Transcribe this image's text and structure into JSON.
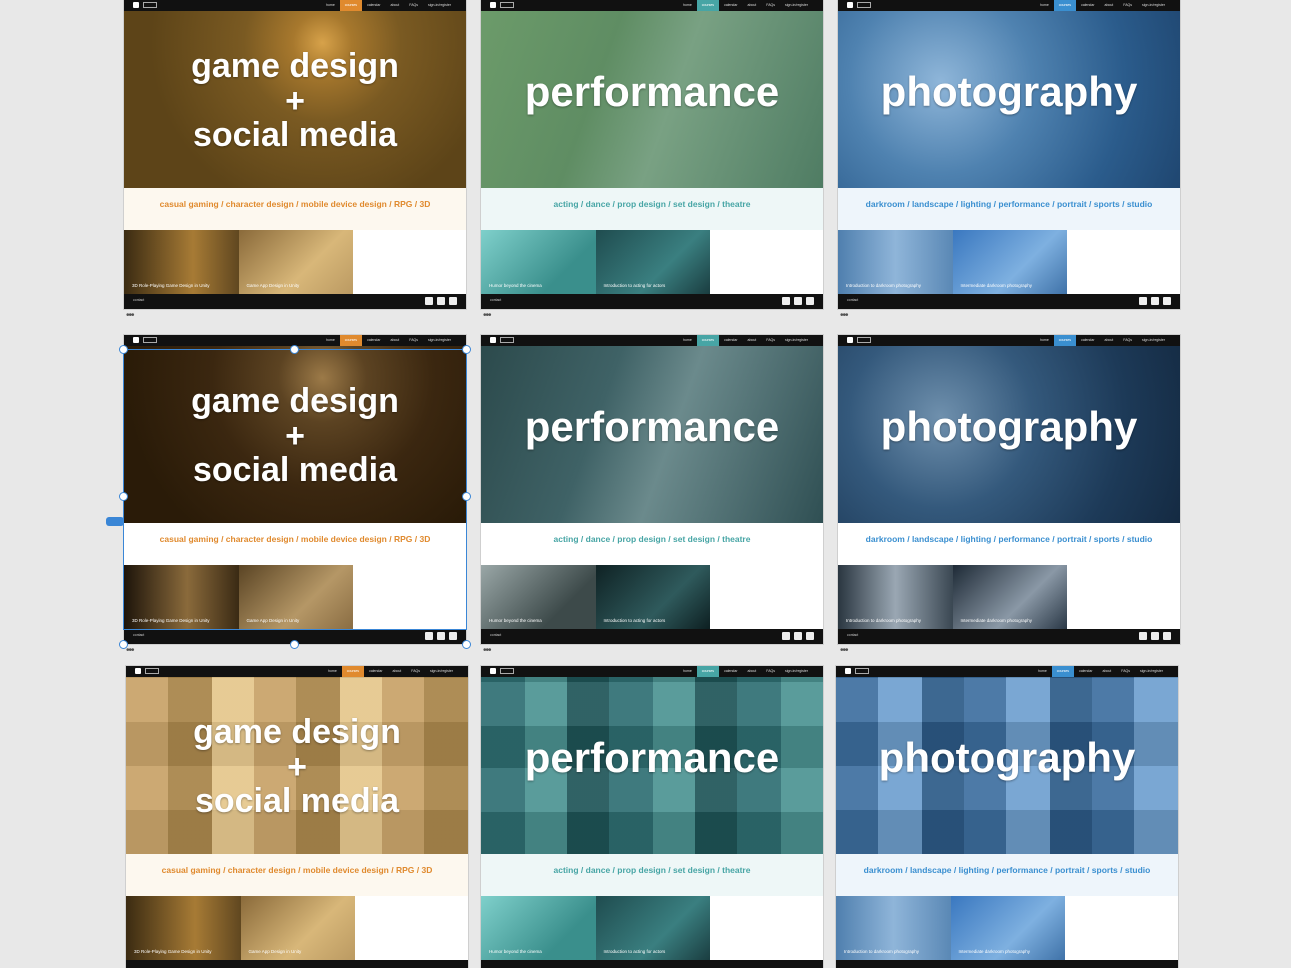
{
  "nav": {
    "items": [
      "home",
      "courses",
      "calendar",
      "about",
      "FAQs",
      "sign-in/register"
    ]
  },
  "footer": {
    "contact": "contact"
  },
  "colors": {
    "orange": "#e08a2e",
    "teal": "#47a5a5",
    "blue": "#3a8fd0",
    "selection": "#3a86d6"
  },
  "cards": [
    {
      "theme": "game",
      "title1": "game design",
      "title2": "+",
      "title3": "social media",
      "tags": "casual gaming / character design / mobile device design / RPG / 3D",
      "thumb1": "3D Role-Playing Game Design in Unity",
      "thumb2": "Game App Design in Unity"
    },
    {
      "theme": "perf",
      "title1": "performance",
      "tags": "acting / dance / prop design / set design / theatre",
      "thumb1": "Humor beyond the cinema",
      "thumb2": "Introduction to acting for actors"
    },
    {
      "theme": "photo",
      "title1": "photography",
      "tags": "darkroom / landscape / lighting / performance / portrait / sports / studio",
      "thumb1": "Introduction to darkroom photography",
      "thumb2": "Intermediate darkroom photography"
    },
    {
      "theme": "game",
      "title1": "game design",
      "title2": "+",
      "title3": "social media",
      "tags": "casual gaming / character design / mobile device design / RPG / 3D",
      "thumb1": "3D Role-Playing Game Design in Unity",
      "thumb2": "Game App Design in Unity"
    },
    {
      "theme": "perf",
      "title1": "performance",
      "tags": "acting / dance / prop design / set design / theatre",
      "thumb1": "Humor beyond the cinema",
      "thumb2": "Introduction to acting for actors"
    },
    {
      "theme": "photo",
      "title1": "photography",
      "tags": "darkroom / landscape / lighting / performance / portrait / sports / studio",
      "thumb1": "Introduction to darkroom photography",
      "thumb2": "Intermediate darkroom photography"
    },
    {
      "theme": "game",
      "title1": "game design",
      "title2": "+",
      "title3": "social media",
      "tags": "casual gaming / character design / mobile device design / RPG / 3D",
      "thumb1": "3D Role-Playing Game Design in Unity",
      "thumb2": "Game App Design in Unity"
    },
    {
      "theme": "perf",
      "title1": "performance",
      "tags": "acting / dance / prop design / set design / theatre",
      "thumb1": "Humor beyond the cinema",
      "thumb2": "Introduction to acting for actors"
    },
    {
      "theme": "photo",
      "title1": "photography",
      "tags": "darkroom / landscape / lighting / performance / portrait / sports / studio",
      "thumb1": "Introduction to darkroom photography",
      "thumb2": "Intermediate darkroom photography"
    }
  ],
  "more": "•••"
}
